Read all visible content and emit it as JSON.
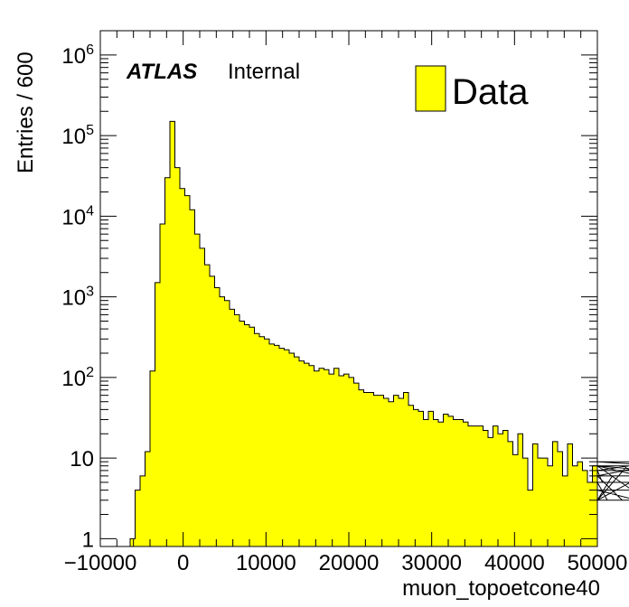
{
  "chart_data": {
    "type": "bar",
    "histogram": true,
    "log_y": true,
    "bin_width": 600,
    "x_range": [
      -10000,
      50000
    ],
    "ylim": [
      0.8,
      2000000
    ],
    "xlabel": "muon_topoetcone40",
    "ylabel": "Entries / 600",
    "atlas_label": "ATLAS",
    "atlas_sublabel": "Internal",
    "legend": {
      "entries": [
        "Data"
      ],
      "position": "top-right",
      "color": "#ffff00"
    },
    "fill_color": "#ffff00",
    "line_color": "#000000",
    "x_tick_labels": [
      "−10000",
      "0",
      "10000",
      "20000",
      "30000",
      "40000",
      "50000"
    ],
    "x_tick_values": [
      -10000,
      0,
      10000,
      20000,
      30000,
      40000,
      50000
    ],
    "y_tick_labels": [
      {
        "value": 1,
        "base": "1",
        "exp": ""
      },
      {
        "value": 10,
        "base": "10",
        "exp": ""
      },
      {
        "value": 100,
        "base": "10",
        "exp": "2"
      },
      {
        "value": 1000,
        "base": "10",
        "exp": "3"
      },
      {
        "value": 10000,
        "base": "10",
        "exp": "4"
      },
      {
        "value": 100000,
        "base": "10",
        "exp": "5"
      },
      {
        "value": 1000000,
        "base": "10",
        "exp": "6"
      }
    ],
    "bin_start": -6400,
    "values": [
      1,
      4,
      6,
      12,
      120,
      1500,
      8000,
      30000,
      150000,
      40000,
      22000,
      18000,
      12000,
      6000,
      4000,
      2500,
      1800,
      1300,
      1000,
      900,
      700,
      600,
      500,
      450,
      420,
      350,
      320,
      300,
      260,
      250,
      230,
      220,
      200,
      180,
      160,
      150,
      140,
      120,
      130,
      125,
      110,
      130,
      105,
      110,
      100,
      85,
      70,
      65,
      65,
      60,
      60,
      55,
      50,
      60,
      55,
      65,
      45,
      40,
      38,
      30,
      38,
      30,
      28,
      35,
      33,
      30,
      30,
      28,
      25,
      25,
      25,
      22,
      18,
      25,
      20,
      22,
      16,
      11,
      20,
      10,
      4,
      15,
      10,
      10,
      8,
      16,
      12,
      6,
      15,
      8,
      9,
      7,
      5,
      8,
      7,
      5,
      3,
      6,
      6,
      3,
      8,
      4,
      3,
      6,
      8,
      7,
      9,
      8,
      5
    ]
  }
}
